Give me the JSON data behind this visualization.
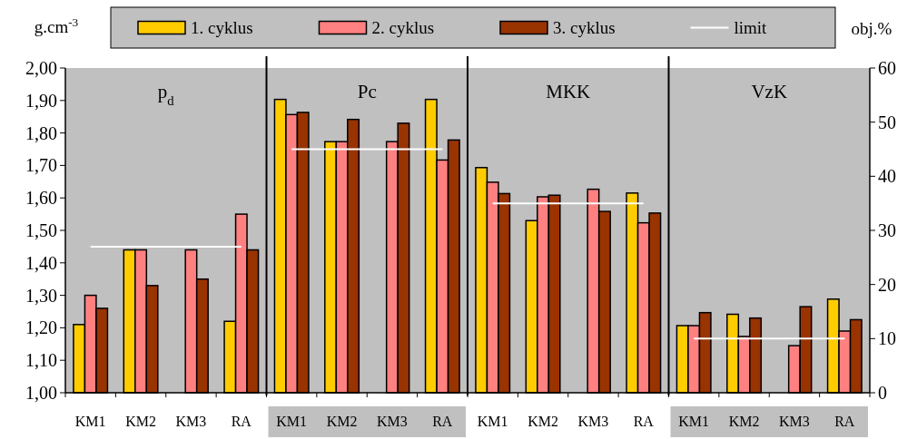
{
  "chart_data": {
    "type": "bar",
    "ylabel": "g.cm$^{-3}$",
    "y2label": "obj.%",
    "categories": [
      "KM1",
      "KM2",
      "KM3",
      "RA",
      "KM1",
      "KM2",
      "KM3",
      "RA",
      "KM1",
      "KM2",
      "KM3",
      "RA",
      "KM1",
      "KM2",
      "KM3",
      "RA"
    ],
    "annotations": [
      "p$_{d}$",
      "Pc",
      "MKK",
      "VzK"
    ],
    "series": [
      {
        "name": "1. cyklus",
        "color": "#ffcc00",
        "axis": "y",
        "values": [
          1.21,
          1.44,
          null,
          1.22,
          null,
          null,
          null,
          null,
          null,
          null,
          null,
          null,
          null,
          null,
          null,
          null
        ]
      },
      {
        "name": "2. cyklus",
        "color": "#ff8080",
        "axis": "y",
        "values": [
          1.3,
          1.44,
          1.44,
          1.55,
          null,
          null,
          null,
          null,
          null,
          null,
          null,
          null,
          null,
          null,
          null,
          null
        ]
      },
      {
        "name": "3. cyklus",
        "color": "#993300",
        "axis": "y",
        "values": [
          1.26,
          1.33,
          1.35,
          1.44,
          null,
          null,
          null,
          null,
          null,
          null,
          null,
          null,
          null,
          null,
          null,
          null
        ]
      },
      {
        "color": "#ffcc00",
        "axis": "y2",
        "values": [
          null,
          null,
          null,
          null,
          54.2,
          46.4,
          null,
          54.2,
          41.6,
          31.8,
          null,
          36.9,
          12.4,
          14.5,
          null,
          17.3
        ]
      },
      {
        "color": "#ff8080",
        "axis": "y2",
        "values": [
          null,
          null,
          null,
          null,
          51.4,
          46.4,
          46.4,
          43.0,
          38.9,
          36.2,
          37.6,
          31.4,
          12.4,
          10.4,
          8.7,
          11.4
        ]
      },
      {
        "color": "#993300",
        "axis": "y2",
        "values": [
          null,
          null,
          null,
          null,
          51.8,
          50.5,
          49.8,
          46.7,
          36.8,
          36.5,
          33.5,
          33.2,
          14.8,
          13.8,
          15.9,
          13.5
        ]
      },
      {
        "name": "limit",
        "type": "line",
        "color": "#ffffff",
        "axis": "y",
        "values": [
          1.45,
          1.45,
          1.45,
          1.45,
          null,
          null,
          null,
          null,
          null,
          null,
          null,
          null,
          null,
          null,
          null,
          null
        ]
      },
      {
        "type": "line",
        "color": "#ffffff",
        "axis": "y2",
        "values": [
          null,
          null,
          null,
          null,
          45,
          45,
          45,
          45,
          null,
          null,
          null,
          null,
          null,
          null,
          null,
          null
        ]
      },
      {
        "type": "line",
        "color": "#ffffff",
        "axis": "y2",
        "values": [
          null,
          null,
          null,
          null,
          null,
          null,
          null,
          null,
          35,
          35,
          35,
          35,
          null,
          null,
          null,
          null
        ]
      },
      {
        "type": "line",
        "color": "#ffffff",
        "axis": "y2",
        "values": [
          null,
          null,
          null,
          null,
          null,
          null,
          null,
          null,
          null,
          null,
          null,
          null,
          10,
          10,
          10,
          10
        ]
      }
    ],
    "ylim": [
      1,
      2
    ],
    "yticks": [
      {
        "value": 1,
        "label": "1,00"
      },
      {
        "value": 1.1,
        "label": "1,10"
      },
      {
        "value": 1.2,
        "label": "1,20"
      },
      {
        "value": 1.3,
        "label": "1,30"
      },
      {
        "value": 1.4,
        "label": "1,40"
      },
      {
        "value": 1.5,
        "label": "1,50"
      },
      {
        "value": 1.6,
        "label": "1,60"
      },
      {
        "value": 1.7,
        "label": "1,70"
      },
      {
        "value": 1.8,
        "label": "1,80"
      },
      {
        "value": 1.9,
        "label": "1,90"
      },
      {
        "value": 2,
        "label": "2,00"
      }
    ],
    "y2lim": [
      0,
      60
    ],
    "y2ticks": [
      0,
      10,
      20,
      30,
      40,
      50,
      60
    ],
    "legend": "top"
  }
}
